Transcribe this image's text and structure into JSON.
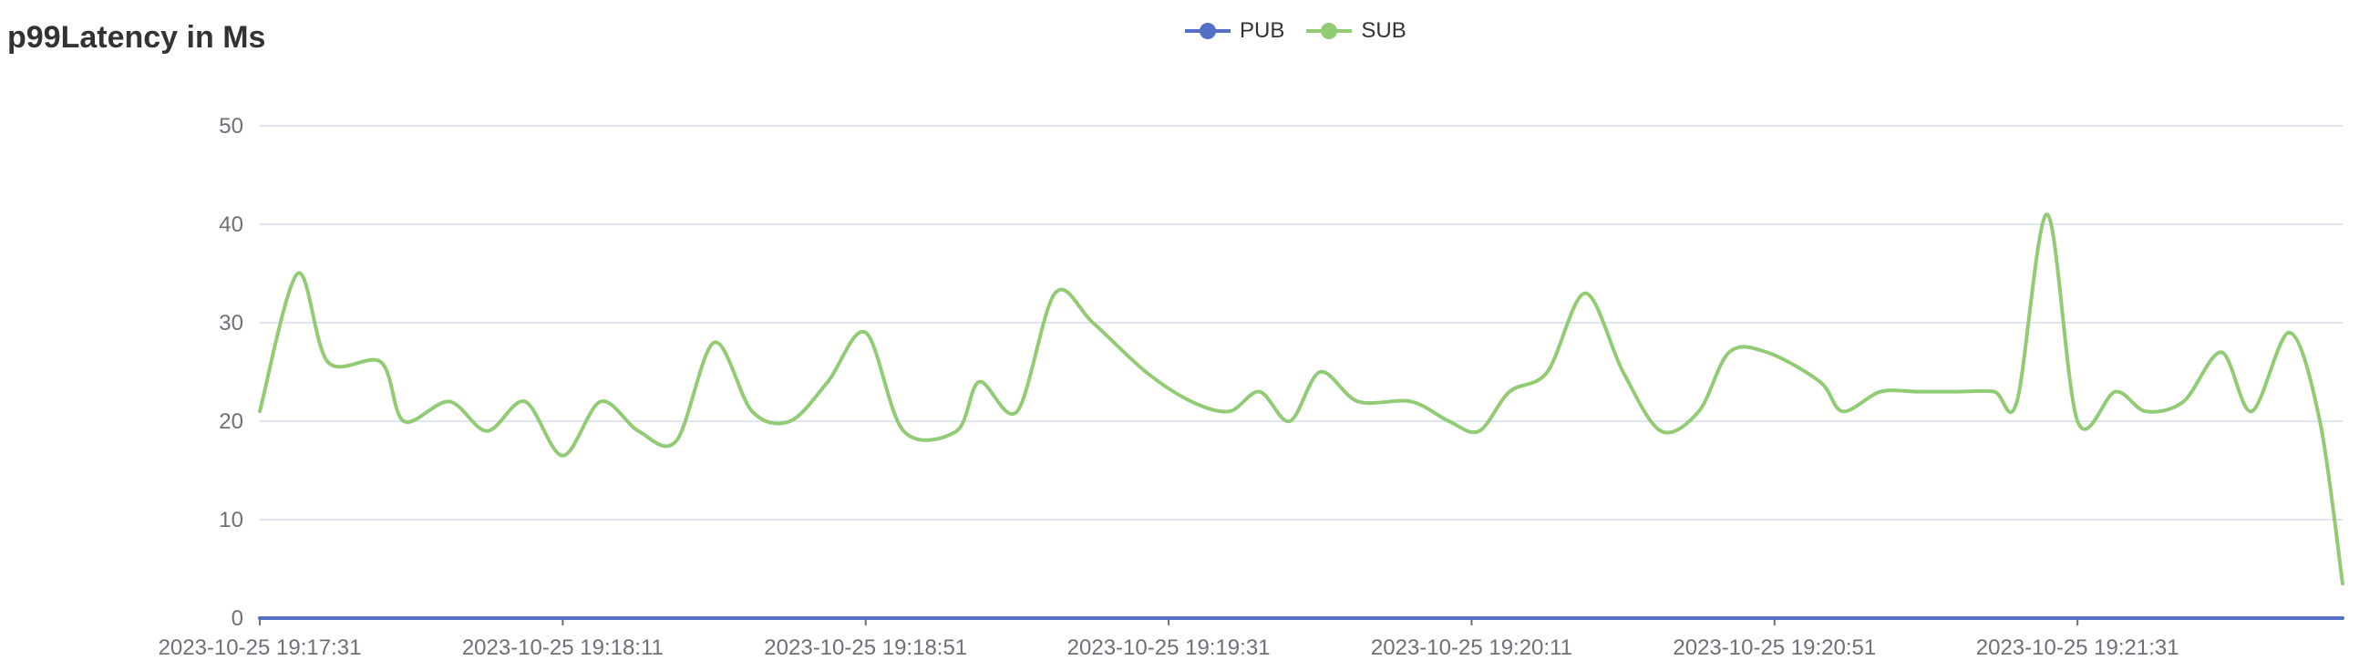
{
  "chart_data": {
    "type": "line",
    "title": "p99Latency in Ms",
    "xlabel": "",
    "ylabel": "",
    "ylim": [
      0,
      50
    ],
    "yticks": [
      "0",
      "10",
      "20",
      "30",
      "40",
      "50"
    ],
    "xticks": [
      "2023-10-25 19:17:31",
      "2023-10-25 19:18:11",
      "2023-10-25 19:18:51",
      "2023-10-25 19:19:31",
      "2023-10-25 19:20:11",
      "2023-10-25 19:20:51",
      "2023-10-25 19:21:31"
    ],
    "grid": true,
    "legend_position": "top-center",
    "series": [
      {
        "name": "PUB",
        "color": "#5470c6",
        "points": [
          [
            0,
            0
          ],
          [
            275,
            0
          ]
        ]
      },
      {
        "name": "SUB",
        "color": "#91cc75",
        "points": [
          [
            0,
            21
          ],
          [
            5,
            35
          ],
          [
            9,
            26
          ],
          [
            16,
            26
          ],
          [
            19,
            20
          ],
          [
            25,
            22
          ],
          [
            30,
            19
          ],
          [
            35,
            22
          ],
          [
            40,
            16.5
          ],
          [
            45,
            22
          ],
          [
            50,
            19
          ],
          [
            55,
            18
          ],
          [
            60,
            28
          ],
          [
            65,
            21
          ],
          [
            70,
            20
          ],
          [
            75,
            24
          ],
          [
            80,
            29
          ],
          [
            85,
            19
          ],
          [
            92,
            19
          ],
          [
            95,
            24
          ],
          [
            100,
            21
          ],
          [
            105,
            33
          ],
          [
            110,
            30
          ],
          [
            117,
            25
          ],
          [
            123,
            22
          ],
          [
            128,
            21
          ],
          [
            132,
            23
          ],
          [
            136,
            20
          ],
          [
            140,
            25
          ],
          [
            145,
            22
          ],
          [
            152,
            22
          ],
          [
            157,
            20
          ],
          [
            161,
            19
          ],
          [
            165,
            23
          ],
          [
            170,
            25
          ],
          [
            175,
            33
          ],
          [
            180,
            25
          ],
          [
            185,
            19
          ],
          [
            190,
            21
          ],
          [
            194,
            27
          ],
          [
            199,
            27
          ],
          [
            206,
            24
          ],
          [
            209,
            21
          ],
          [
            214,
            23
          ],
          [
            219,
            23
          ],
          [
            224,
            23
          ],
          [
            229,
            23
          ],
          [
            232,
            22
          ],
          [
            236,
            41
          ],
          [
            240,
            20
          ],
          [
            245,
            23
          ],
          [
            249,
            21
          ],
          [
            254,
            22
          ],
          [
            259,
            27
          ],
          [
            263,
            21
          ],
          [
            268,
            29
          ],
          [
            272,
            20
          ],
          [
            275,
            3.5
          ]
        ]
      }
    ]
  }
}
